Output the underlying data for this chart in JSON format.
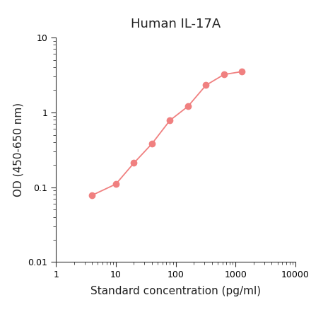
{
  "title": "Human IL-17A",
  "xlabel": "Standard concentration (pg/ml)",
  "ylabel": "OD (450-650 nm)",
  "x_data": [
    4,
    10,
    20,
    40,
    80,
    160,
    320,
    640,
    1280
  ],
  "y_data": [
    0.078,
    0.11,
    0.21,
    0.38,
    0.78,
    1.2,
    2.3,
    3.2,
    3.5
  ],
  "line_color": "#F08080",
  "marker_color": "#F08080",
  "xlim": [
    1,
    10000
  ],
  "ylim": [
    0.01,
    10
  ],
  "x_ticks": [
    1,
    10,
    100,
    1000,
    10000
  ],
  "y_ticks": [
    0.01,
    0.1,
    1,
    10
  ],
  "background_color": "#ffffff",
  "title_fontsize": 13,
  "label_fontsize": 11
}
